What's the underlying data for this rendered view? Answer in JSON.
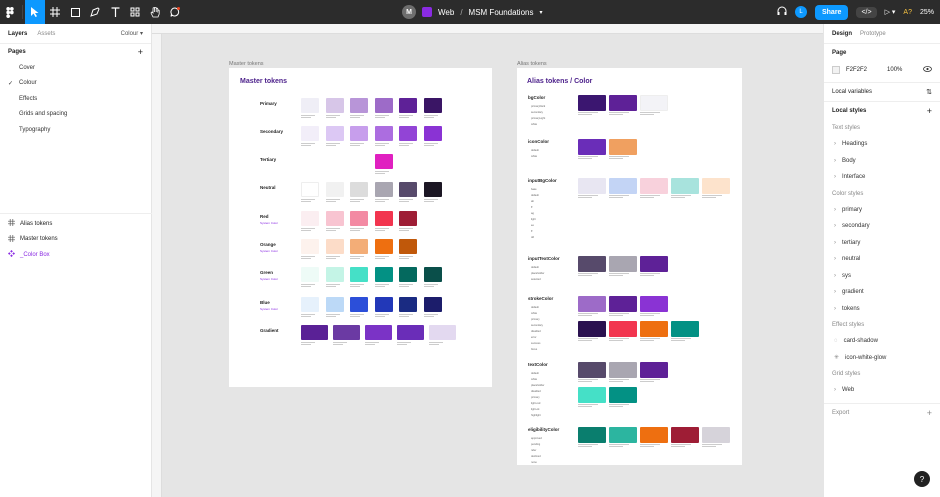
{
  "toolbar": {
    "tools": [
      "figma-menu-icon",
      "move-tool-icon",
      "frame-tool-icon",
      "shape-tool-icon",
      "pen-tool-icon",
      "text-tool-icon",
      "components-icon",
      "hand-tool-icon",
      "comment-tool-icon"
    ]
  },
  "file": {
    "user_initial": "M",
    "project": "Web",
    "separator": "/",
    "name": "MSM Foundations"
  },
  "top_right": {
    "share_label": "Share",
    "user_initial": "L",
    "zoom": "25%",
    "font_glyph": "A?"
  },
  "left_panel": {
    "tab_layers": "Layers",
    "tab_assets": "Assets",
    "current_page": "Colour",
    "pages_title": "Pages",
    "pages": [
      "Cover",
      "Colour",
      "Effects",
      "Grids and spacing",
      "Typography"
    ],
    "checked_page_index": 1,
    "layers": [
      "Alias tokens",
      "Master tokens",
      "_Color Box"
    ]
  },
  "canvas": {
    "frame1_label": "Master tokens",
    "frame1_title": "Master tokens",
    "frame2_label": "Alias tokens",
    "frame2_title": "Alias tokens / Color",
    "master_rows": [
      {
        "label": "Primary",
        "sub": "",
        "colors": [
          "#efeef6",
          "#d7c6e8",
          "#b895d8",
          "#9d6bc8",
          "#5e2197",
          "#3a1565"
        ]
      },
      {
        "label": "Secondary",
        "sub": "",
        "colors": [
          "#f2eef9",
          "#dcc8f4",
          "#c79eec",
          "#ac6de0",
          "#9244d6",
          "#8a33d4"
        ]
      },
      {
        "label": "Tertiary",
        "sub": "",
        "colors": [
          "#e020c0"
        ]
      },
      {
        "label": "Neutral",
        "sub": "",
        "colors": [
          "#ffffff",
          "#f1f1f1",
          "#dcdcdc",
          "#a9a6b1",
          "#574a6b",
          "#1c1724"
        ]
      },
      {
        "label": "Red",
        "sub": "System Color",
        "colors": [
          "#fbeef1",
          "#f8c4d1",
          "#f38aa3",
          "#f2354f",
          "#9e1d35"
        ]
      },
      {
        "label": "Orange",
        "sub": "System Color",
        "colors": [
          "#fdf2ed",
          "#fcdcc8",
          "#f3ad77",
          "#ee6f10",
          "#c0580a"
        ]
      },
      {
        "label": "Green",
        "sub": "System Color",
        "colors": [
          "#eefbf7",
          "#c4f4e6",
          "#45e0c7",
          "#039184",
          "#04695e",
          "#0a4f4a"
        ]
      },
      {
        "label": "Blue",
        "sub": "System Color",
        "colors": [
          "#e6f1fc",
          "#bcd9f7",
          "#2c4fd9",
          "#2238b8",
          "#1a2b82",
          "#1c1d6b"
        ]
      },
      {
        "label": "Gradient",
        "sub": "",
        "colors": [
          "#5a2196",
          "#6b3aa3",
          "#7b33c6",
          "#6a2db8",
          "#e3d9f0"
        ]
      }
    ],
    "alias_rows": [
      {
        "label": "bgColor",
        "items": [
          "primaryDark",
          "secondary",
          "primaryLight",
          "white"
        ],
        "colors": [
          "#3b1670",
          "#5e2197",
          "#f3f3f7"
        ]
      },
      {
        "label": "iconColor",
        "items": [
          "default",
          "white"
        ],
        "colors": [
          "#6a2db8",
          "#f0a060"
        ]
      },
      {
        "label": "inputBgColor",
        "items": [
          "base",
          "default",
          "ab",
          "ff",
          "ag",
          "light",
          "ee",
          "ff",
          "dd"
        ],
        "colors": [
          "#e8e6f2",
          "#c3d4f5",
          "#f8d1dc",
          "#a8e3dd",
          "#fde3cc"
        ]
      },
      {
        "label": "inputTextColor",
        "items": [
          "default",
          "placeholder",
          "selected"
        ],
        "colors": [
          "#574a6b",
          "#a9a6b1",
          "#5e2197"
        ]
      },
      {
        "label": "strokeColor",
        "items": [
          "default",
          "white",
          "primary",
          "secondary",
          "disabled",
          "error",
          "success",
          "focus"
        ],
        "colors": [
          "#9d6bc8",
          "#5e2197",
          "#8a33d4",
          "#2b1250",
          "#f2354f",
          "#ee6f10",
          "#039184"
        ]
      },
      {
        "label": "textColor",
        "items": [
          "default",
          "white",
          "placeholder",
          "disabled",
          "primary",
          "light-red",
          "light-ok",
          "highlight"
        ],
        "colors": [
          "#574a6b",
          "#a9a6b1",
          "#5e2197",
          "#45e0c7",
          "#039184"
        ]
      },
      {
        "label": "eligibilityColor",
        "items": [
          "approved",
          "pending",
          "refer",
          "declined",
          "none"
        ],
        "colors": [
          "#0a7e6e",
          "#2cb5a0",
          "#ee6f10",
          "#9e1d35",
          "#d6d3da"
        ]
      }
    ]
  },
  "right_panel": {
    "tab_design": "Design",
    "tab_prototype": "Prototype",
    "page_title": "Page",
    "page_color": "F2F2F2",
    "page_opacity": "100%",
    "local_variables": "Local variables",
    "local_styles": "Local styles",
    "text_styles_title": "Text styles",
    "text_styles": [
      "Headings",
      "Body",
      "Interface"
    ],
    "color_styles_title": "Color styles",
    "color_styles": [
      "primary",
      "secondary",
      "tertiary",
      "neutral",
      "sys",
      "gradient",
      "tokens"
    ],
    "effect_styles_title": "Effect styles",
    "effect_styles": [
      "card-shadow",
      "icon-white-glow"
    ],
    "grid_styles_title": "Grid styles",
    "grid_styles": [
      "Web"
    ],
    "export_label": "Export",
    "help": "?"
  }
}
